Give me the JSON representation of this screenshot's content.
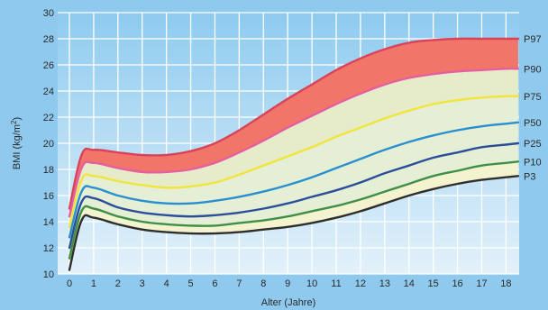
{
  "chart_data": {
    "type": "line",
    "xlabel": "Alter (Jahre)",
    "ylabel_main": "BMI (kg/m",
    "ylabel_sup": "2",
    "ylabel_close": ")",
    "xlim": [
      0,
      18.5
    ],
    "ylim": [
      10,
      30
    ],
    "xticks": [
      0,
      1,
      2,
      3,
      4,
      5,
      6,
      7,
      8,
      9,
      10,
      11,
      12,
      13,
      14,
      15,
      16,
      17,
      18
    ],
    "yticks": [
      10,
      12,
      14,
      16,
      18,
      20,
      22,
      24,
      26,
      28,
      30
    ],
    "grid": true,
    "x": [
      0,
      0.5,
      1,
      2,
      3,
      4,
      5,
      6,
      7,
      8,
      9,
      10,
      11,
      12,
      13,
      14,
      15,
      16,
      17,
      18,
      18.5
    ],
    "series": [
      {
        "name": "P97",
        "color": "#d9435a",
        "values": [
          15.0,
          19.1,
          19.5,
          19.3,
          19.1,
          19.1,
          19.4,
          20.0,
          21.0,
          22.2,
          23.4,
          24.5,
          25.6,
          26.5,
          27.2,
          27.7,
          27.9,
          28.0,
          28.0,
          28.0,
          28.0
        ]
      },
      {
        "name": "P90",
        "color": "#e35fa0",
        "values": [
          14.4,
          18.1,
          18.5,
          18.1,
          17.8,
          17.8,
          18.0,
          18.5,
          19.3,
          20.2,
          21.2,
          22.1,
          23.0,
          23.8,
          24.5,
          25.0,
          25.3,
          25.5,
          25.6,
          25.7,
          25.7
        ]
      },
      {
        "name": "P75",
        "color": "#f1e43a",
        "values": [
          13.6,
          17.2,
          17.5,
          17.1,
          16.8,
          16.6,
          16.7,
          17.0,
          17.6,
          18.3,
          19.0,
          19.7,
          20.5,
          21.2,
          21.9,
          22.5,
          23.0,
          23.3,
          23.5,
          23.6,
          23.6
        ]
      },
      {
        "name": "P50",
        "color": "#2a8fcf",
        "values": [
          12.8,
          16.3,
          16.6,
          16.0,
          15.6,
          15.4,
          15.4,
          15.6,
          15.9,
          16.3,
          16.8,
          17.4,
          18.1,
          18.8,
          19.5,
          20.1,
          20.6,
          21.0,
          21.3,
          21.5,
          21.6
        ]
      },
      {
        "name": "P25",
        "color": "#2b4e9a",
        "values": [
          12.0,
          15.5,
          15.8,
          15.1,
          14.7,
          14.5,
          14.4,
          14.5,
          14.7,
          15.0,
          15.4,
          15.9,
          16.4,
          17.0,
          17.7,
          18.3,
          18.9,
          19.3,
          19.7,
          19.9,
          20.0
        ]
      },
      {
        "name": "P10",
        "color": "#3f8f47",
        "values": [
          11.2,
          14.8,
          15.0,
          14.4,
          14.0,
          13.8,
          13.7,
          13.7,
          13.9,
          14.1,
          14.4,
          14.8,
          15.2,
          15.7,
          16.3,
          16.9,
          17.5,
          17.9,
          18.3,
          18.5,
          18.6
        ]
      },
      {
        "name": "P3",
        "color": "#2e2e2e",
        "values": [
          10.3,
          14.1,
          14.3,
          13.8,
          13.4,
          13.2,
          13.1,
          13.1,
          13.2,
          13.4,
          13.6,
          13.9,
          14.3,
          14.8,
          15.4,
          16.0,
          16.5,
          16.9,
          17.2,
          17.4,
          17.5
        ]
      }
    ],
    "colors": {
      "background": "#8fc9ee",
      "plot_top": "#8ecbef",
      "plot_bottom": "#e3f1fa",
      "grid": "#ffffff",
      "band_p90_p97": "#f2756a",
      "band_p75_p90": "#e6ecc9",
      "band_p3_p75": "#e4efd6",
      "band_p3_p10": "#f3f3d0"
    }
  }
}
